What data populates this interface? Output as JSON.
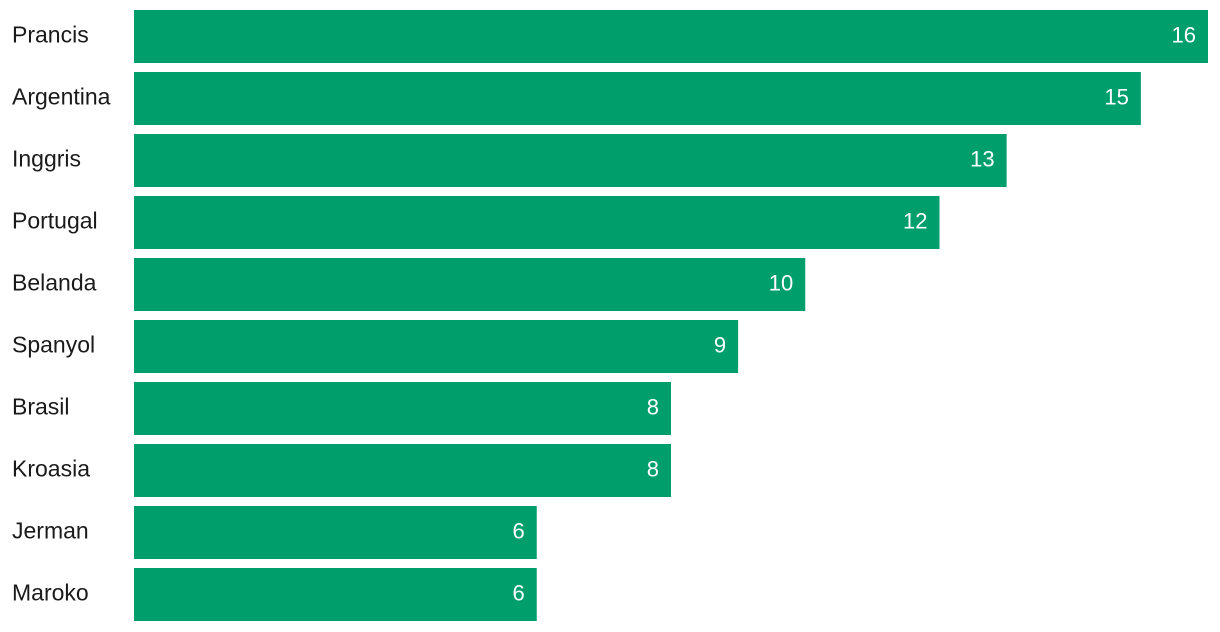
{
  "chart_data": {
    "type": "bar",
    "orientation": "horizontal",
    "categories": [
      "Prancis",
      "Argentina",
      "Inggris",
      "Portugal",
      "Belanda",
      "Spanyol",
      "Brasil",
      "Kroasia",
      "Jerman",
      "Maroko"
    ],
    "values": [
      16,
      15,
      13,
      12,
      10,
      9,
      8,
      8,
      6,
      6
    ],
    "value_labels": [
      "16",
      "15",
      "13",
      "12",
      "10",
      "9",
      "8",
      "8",
      "6",
      "6"
    ],
    "title": "",
    "xlabel": "",
    "ylabel": "",
    "xlim": [
      0,
      16
    ],
    "bar_color": "#009E6B",
    "grid": false,
    "legend": "none"
  }
}
